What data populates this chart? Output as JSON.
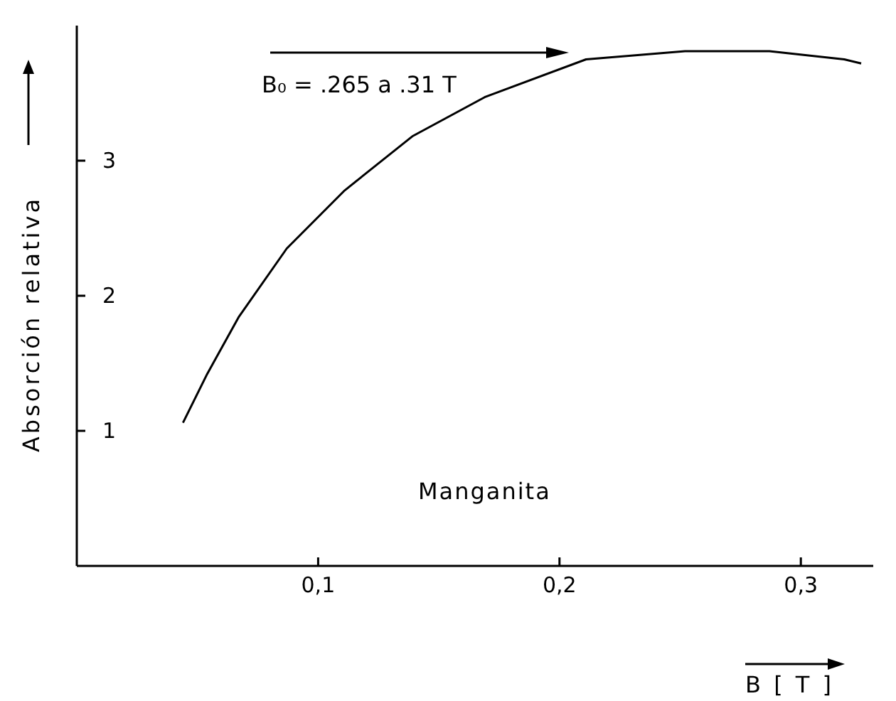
{
  "chart_data": {
    "type": "line",
    "xlabel": "B [ T ]",
    "ylabel": "Absorción relativa",
    "annotations": [
      "B₀ = .265 a .31 T",
      "Manganita"
    ],
    "x": [
      0.044,
      0.054,
      0.067,
      0.087,
      0.111,
      0.139,
      0.169,
      0.211,
      0.252,
      0.287,
      0.318,
      0.325
    ],
    "series": [
      {
        "color": "#000000",
        "values": [
          1.06,
          1.42,
          1.84,
          2.35,
          2.78,
          3.18,
          3.47,
          3.75,
          3.81,
          3.81,
          3.75,
          3.72
        ]
      }
    ],
    "xlim": [
      0,
      0.33
    ],
    "xticks": [
      {
        "value": 0.1,
        "label": "0,1"
      },
      {
        "value": 0.2,
        "label": "0,2"
      },
      {
        "value": 0.3,
        "label": "0,3"
      }
    ],
    "ylim": [
      0,
      4
    ],
    "yticks": [
      1,
      2,
      3
    ],
    "grid": false,
    "legend": false,
    "marker": "none",
    "line_style": "solid"
  }
}
